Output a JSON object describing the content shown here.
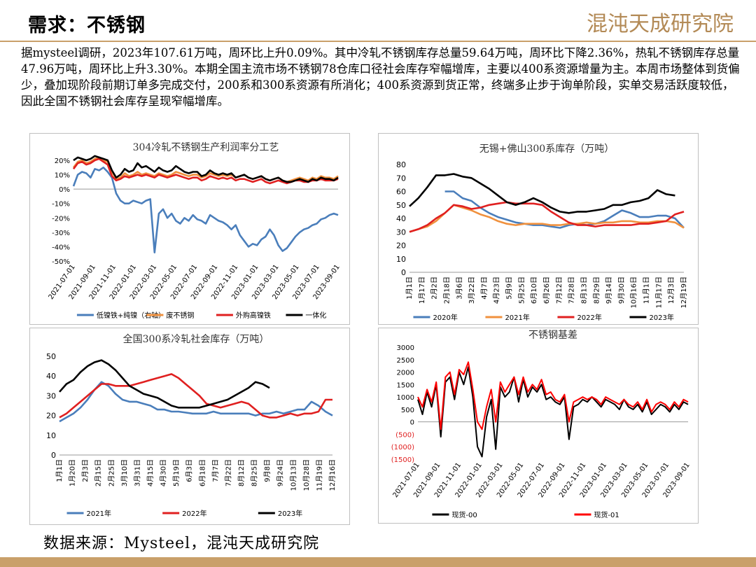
{
  "page": {
    "title": "需求：不锈钢",
    "logo_text": "混沌天成研究院",
    "description": "据mysteel调研，2023年107.61万吨，周环比上升0.09%。其中冷轧不锈钢库存总量59.64万吨，周环比下降2.36%，热轧不锈钢库存总量47.96万吨，周环比上升3.30%。本期全国主流市场不锈钢78仓库口径社会库存窄幅增库，主要以400系资源增量为主。本周市场整体到货偏少，叠加现阶段前期订单多完成交付，200系和300系资源有所消化；400系资源到货正常，终端多止步于询单阶段，实单交易活跃度较低，因此全国不锈钢社会库存呈现窄幅增库。",
    "footer": "数据来源：Mysteel，混沌天成研究院"
  },
  "chart_data": [
    {
      "id": "profit",
      "type": "line",
      "title": "304冷轧不锈钢生产利润率分工艺",
      "ylim": [
        -50,
        20
      ],
      "yticks": [
        "20%",
        "10%",
        "0%",
        "-10%",
        "-20%",
        "-30%",
        "-40%",
        "-50%"
      ],
      "x_ticks": [
        "2021-07-01",
        "2021-09-01",
        "2021-11-01",
        "2022-01-01",
        "2022-03-01",
        "2022-05-01",
        "2022-07-01",
        "2022-09-01",
        "2022-11-01",
        "2023-01-01",
        "2023-03-01",
        "2023-05-01",
        "2023-07-01",
        "2023-09-01"
      ],
      "series": [
        {
          "name": "低镍铁+纯镍（右轴）",
          "color": "#4a7ebb",
          "values": [
            2,
            10,
            12,
            11,
            8,
            14,
            13,
            15,
            12,
            8,
            -3,
            -8,
            -10,
            -10,
            -8,
            -9,
            -10,
            -8,
            -7,
            -44,
            -17,
            -14,
            -20,
            -17,
            -22,
            -24,
            -20,
            -22,
            -18,
            -21,
            -22,
            -24,
            -18,
            -20,
            -22,
            -23,
            -25,
            -28,
            -25,
            -32,
            -36,
            -40,
            -38,
            -39,
            -35,
            -33,
            -28,
            -32,
            -39,
            -43,
            -41,
            -37,
            -33,
            -30,
            -28,
            -27,
            -25,
            -24,
            -21,
            -20,
            -18,
            -17,
            -18
          ]
        },
        {
          "name": "废不锈钢",
          "color": "#f0913e",
          "values": [
            15,
            19,
            20,
            18,
            19,
            21,
            22,
            20,
            19,
            12,
            7,
            8,
            11,
            9,
            10,
            12,
            10,
            11,
            10,
            9,
            11,
            10,
            9,
            10,
            12,
            11,
            10,
            9,
            10,
            10,
            8,
            9,
            11,
            10,
            9,
            10,
            9,
            10,
            8,
            9,
            10,
            8,
            7,
            8,
            9,
            7,
            6,
            7,
            8,
            6,
            5,
            6,
            7,
            8,
            7,
            6,
            8,
            7,
            9,
            8,
            8,
            7,
            9
          ]
        },
        {
          "name": "外购高镍铁",
          "color": "#e02020",
          "values": [
            14,
            18,
            19,
            17,
            18,
            20,
            21,
            19,
            17,
            9,
            6,
            7,
            9,
            8,
            9,
            10,
            9,
            10,
            9,
            8,
            10,
            9,
            8,
            9,
            10,
            9,
            8,
            7,
            8,
            8,
            6,
            7,
            9,
            8,
            7,
            8,
            7,
            8,
            6,
            7,
            7,
            6,
            5,
            6,
            7,
            5,
            4,
            5,
            6,
            5,
            4,
            5,
            6,
            6,
            5,
            5,
            6,
            6,
            7,
            6,
            6,
            6,
            7
          ]
        },
        {
          "name": "一体化",
          "color": "#000000",
          "values": [
            20,
            22,
            21,
            20,
            21,
            23,
            22,
            21,
            20,
            13,
            8,
            10,
            14,
            12,
            13,
            18,
            15,
            16,
            14,
            12,
            15,
            13,
            12,
            13,
            16,
            14,
            12,
            11,
            12,
            12,
            9,
            10,
            13,
            11,
            10,
            11,
            10,
            11,
            8,
            9,
            10,
            8,
            7,
            8,
            9,
            7,
            6,
            7,
            8,
            6,
            5,
            5,
            6,
            7,
            6,
            5,
            7,
            6,
            8,
            7,
            7,
            6,
            8
          ]
        }
      ]
    },
    {
      "id": "wuxi",
      "type": "line",
      "title": "无锡+佛山300系库存（万吨）",
      "ylim": [
        0,
        80
      ],
      "yticks": [
        "80",
        "70",
        "60",
        "50",
        "40",
        "30",
        "20",
        "10",
        "0"
      ],
      "x_ticks": [
        "1月1日",
        "1月17日",
        "2月2日",
        "2月18日",
        "3月6日",
        "3月22日",
        "4月7日",
        "4月23日",
        "5月9日",
        "5月25日",
        "6月10日",
        "6月26日",
        "7月12日",
        "7月28日",
        "8月13日",
        "8月29日",
        "9月14日",
        "9月30日",
        "10月16日",
        "11月1日",
        "11月17日",
        "12月3日",
        "12月19日"
      ],
      "series": [
        {
          "name": "2020年",
          "color": "#4a7ebb",
          "values": [
            null,
            null,
            null,
            null,
            60,
            60,
            55,
            53,
            48,
            44,
            41,
            39,
            37,
            36,
            35,
            35,
            34,
            33,
            35,
            36,
            35,
            36,
            38,
            42,
            46,
            44,
            41,
            41,
            42,
            42,
            40,
            33
          ]
        },
        {
          "name": "2021年",
          "color": "#f0913e",
          "values": [
            30,
            32,
            34,
            38,
            44,
            50,
            48,
            46,
            43,
            41,
            38,
            36,
            35,
            36,
            36,
            36,
            35,
            35,
            36,
            36,
            37,
            36,
            37,
            37,
            38,
            38,
            37,
            37,
            38,
            38,
            37,
            33
          ]
        },
        {
          "name": "2022年",
          "color": "#e02020",
          "values": [
            30,
            32,
            35,
            40,
            44,
            50,
            49,
            47,
            48,
            50,
            51,
            52,
            51,
            51,
            51,
            50,
            45,
            41,
            37,
            35,
            35,
            34,
            35,
            35,
            35,
            35,
            36,
            36,
            37,
            38,
            43,
            45
          ]
        },
        {
          "name": "2023年",
          "color": "#000000",
          "values": [
            49,
            55,
            63,
            72,
            72,
            73,
            71,
            70,
            66,
            62,
            57,
            52,
            50,
            52,
            55,
            52,
            48,
            45,
            44,
            45,
            45,
            46,
            47,
            50,
            50,
            52,
            53,
            55,
            61,
            58,
            57,
            null
          ]
        }
      ]
    },
    {
      "id": "national",
      "type": "line",
      "title": "全国300系冷轧社会库存（万吨）",
      "ylim": [
        0,
        50
      ],
      "yticks": [
        "50",
        "40",
        "30",
        "20",
        "10",
        "0"
      ],
      "x_ticks": [
        "1月1日",
        "1月20日",
        "2月3日",
        "2月15日",
        "2月25日",
        "3月10日",
        "3月31日",
        "4月15日",
        "4月30日",
        "5月19日",
        "6月3日",
        "6月18日",
        "7月7日",
        "7月22日",
        "8月12日",
        "8月25日",
        "9月8日",
        "9月24日",
        "10月13日",
        "10月28日",
        "11月19日",
        "12月16日"
      ],
      "series": [
        {
          "name": "2021年",
          "color": "#4a7ebb",
          "values": [
            17,
            19,
            21,
            24,
            28,
            33,
            37,
            35,
            31,
            28,
            27,
            27,
            26,
            25,
            23,
            23,
            22,
            22,
            21.5,
            21,
            21,
            21,
            22,
            21,
            21,
            21,
            21,
            21,
            20,
            21,
            21,
            22,
            21,
            22,
            23,
            23,
            27,
            25,
            22,
            20
          ]
        },
        {
          "name": "2022年",
          "color": "#e02020",
          "values": [
            19,
            21,
            24,
            27,
            30,
            33,
            36,
            36,
            35,
            35,
            35,
            36,
            37,
            38,
            39,
            40,
            41,
            39,
            36,
            33,
            30,
            26,
            25,
            24,
            25,
            26,
            27,
            26,
            23,
            20,
            19,
            19,
            20,
            21,
            20,
            21,
            21,
            22,
            28,
            28
          ]
        },
        {
          "name": "2023年",
          "color": "#000000",
          "values": [
            32,
            36,
            38,
            42,
            45,
            47,
            48,
            46,
            43,
            39,
            35,
            33,
            31,
            30,
            29,
            27,
            25,
            24,
            24,
            24,
            24,
            25,
            26,
            27,
            28,
            30,
            32,
            34,
            37,
            36,
            34,
            null,
            null,
            null,
            null,
            null,
            null,
            null,
            null,
            null
          ]
        }
      ]
    },
    {
      "id": "basis",
      "type": "line",
      "title": "不锈钢基差",
      "ylim": [
        -1500,
        3000
      ],
      "yticks": [
        "3000",
        "2500",
        "2000",
        "1500",
        "1000",
        "500",
        "0",
        "(500)",
        "(1000)",
        "(1500)"
      ],
      "x_ticks": [
        "2021-07-01",
        "2021-09-01",
        "2021-11-01",
        "2022-01-01",
        "2022-03-01",
        "2022-05-01",
        "2022-07-01",
        "2022-09-01",
        "2022-11-01",
        "2023-01-01",
        "2023-03-01",
        "2023-05-01",
        "2023-07-01",
        "2023-09-01"
      ],
      "series": [
        {
          "name": "现货-00",
          "color": "#000000",
          "values": [
            900,
            300,
            1200,
            600,
            1500,
            -600,
            1600,
            1800,
            900,
            2000,
            1500,
            2200,
            1000,
            -1000,
            -1400,
            200,
            900,
            -1100,
            1400,
            1000,
            1200,
            1800,
            800,
            1700,
            1000,
            1400,
            1200,
            1500,
            900,
            1000,
            800,
            700,
            1000,
            -700,
            600,
            700,
            900,
            800,
            1000,
            800,
            600,
            900,
            800,
            700,
            500,
            900,
            600,
            500,
            700,
            400,
            800,
            300,
            500,
            700,
            600,
            400,
            700,
            500,
            800,
            700
          ]
        },
        {
          "name": "现货-01",
          "color": "#ff0000",
          "values": [
            1000,
            600,
            1300,
            800,
            1600,
            -300,
            1800,
            2000,
            1100,
            2100,
            1900,
            2400,
            1300,
            0,
            -300,
            600,
            1300,
            0,
            1600,
            1200,
            1500,
            1800,
            1100,
            1800,
            1200,
            1500,
            1300,
            1700,
            1100,
            1200,
            900,
            800,
            1100,
            0,
            800,
            900,
            1000,
            900,
            1000,
            900,
            700,
            1000,
            900,
            800,
            700,
            900,
            700,
            600,
            800,
            500,
            900,
            400,
            700,
            800,
            700,
            500,
            800,
            600,
            900,
            800
          ]
        }
      ]
    }
  ]
}
